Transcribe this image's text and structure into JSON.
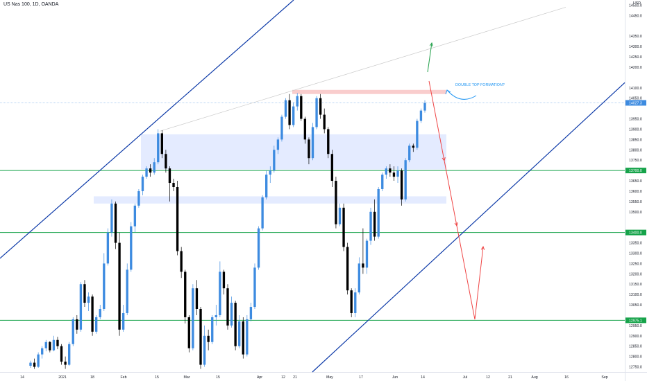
{
  "header": {
    "title": "US Nas 100, 1D, OANDA"
  },
  "colors": {
    "up": "#3d8be0",
    "down": "#000000",
    "channel": "#0d3aa8",
    "support": "#16a34a",
    "zone": "#dde6ff",
    "resistance": "#f8c4c4",
    "arrow_down": "#ef4444",
    "arrow_up": "#22a04a",
    "note": "#2196f3",
    "trend": "#c9c9c9"
  },
  "chart_data": {
    "type": "candlestick",
    "symbol": "US Nas 100",
    "interval": "1D",
    "source": "OANDA",
    "currency": "USD",
    "ylim": [
      12725,
      14525
    ],
    "x_ticks": [
      "14",
      "2021",
      "18",
      "Feb",
      "15",
      "Mar",
      "15",
      "Apr",
      "12",
      "21",
      "May",
      "17",
      "Jun",
      "14",
      "Jul",
      "12",
      "21",
      "Aug",
      "16",
      "Sep"
    ],
    "y_ticks": [
      "14500.0",
      "14450.0",
      "14350.0",
      "14300.0",
      "14250.0",
      "14200.0",
      "14100.0",
      "14050.0",
      "13950.0",
      "13900.0",
      "13850.0",
      "13800.0",
      "13750.0",
      "13650.0",
      "13600.0",
      "13550.0",
      "13500.0",
      "13350.0",
      "13300.0",
      "13250.0",
      "13200.0",
      "13150.0",
      "13100.0",
      "13050.0",
      "12950.0",
      "12900.0",
      "12850.0",
      "12800.0",
      "12750.0"
    ],
    "price_badges": [
      {
        "label": "14027.3",
        "value": 14027.3,
        "color": "#3d8be0"
      },
      {
        "label": "13700.0",
        "value": 13700.0,
        "color": "#16a34a"
      },
      {
        "label": "13400.0",
        "value": 13400.0,
        "color": "#16a34a"
      },
      {
        "label": "12975.1",
        "value": 12975.1,
        "color": "#16a34a"
      }
    ],
    "horizontal_levels": [
      13700.0,
      13400.0,
      12975.1
    ],
    "annotation": "DOUBLE TOP FORMATION?",
    "candles": [
      [
        12755,
        12780,
        12745,
        12770
      ],
      [
        12770,
        12790,
        12740,
        12750
      ],
      [
        12750,
        12820,
        12745,
        12810
      ],
      [
        12810,
        12850,
        12790,
        12840
      ],
      [
        12840,
        12880,
        12825,
        12870
      ],
      [
        12870,
        12875,
        12820,
        12830
      ],
      [
        12830,
        12900,
        12825,
        12880
      ],
      [
        12880,
        12895,
        12835,
        12850
      ],
      [
        12850,
        12860,
        12760,
        12775
      ],
      [
        12775,
        12800,
        12740,
        12760
      ],
      [
        12760,
        12870,
        12755,
        12860
      ],
      [
        12860,
        12990,
        12850,
        12980
      ],
      [
        12980,
        13000,
        12910,
        12930
      ],
      [
        12930,
        13160,
        12920,
        13150
      ],
      [
        13150,
        13170,
        13040,
        13060
      ],
      [
        13060,
        13110,
        13020,
        13090
      ],
      [
        13090,
        13100,
        12900,
        12920
      ],
      [
        12920,
        13000,
        12910,
        12990
      ],
      [
        12990,
        13050,
        12980,
        13030
      ],
      [
        13030,
        13300,
        13020,
        13250
      ],
      [
        13250,
        13420,
        13240,
        13400
      ],
      [
        13400,
        13560,
        13380,
        13540
      ],
      [
        13540,
        13550,
        13320,
        13350
      ],
      [
        13350,
        13400,
        12900,
        12930
      ],
      [
        12930,
        13050,
        12920,
        13010
      ],
      [
        13010,
        13250,
        13000,
        13220
      ],
      [
        13220,
        13450,
        13210,
        13430
      ],
      [
        13430,
        13540,
        13400,
        13530
      ],
      [
        13530,
        13610,
        13520,
        13600
      ],
      [
        13600,
        13680,
        13580,
        13670
      ],
      [
        13670,
        13720,
        13660,
        13710
      ],
      [
        13710,
        13730,
        13670,
        13690
      ],
      [
        13690,
        13760,
        13680,
        13740
      ],
      [
        13740,
        13900,
        13730,
        13880
      ],
      [
        13880,
        13895,
        13760,
        13780
      ],
      [
        13780,
        13800,
        13690,
        13710
      ],
      [
        13710,
        13720,
        13550,
        13640
      ],
      [
        13640,
        13660,
        13600,
        13620
      ],
      [
        13620,
        13650,
        13290,
        13310
      ],
      [
        13310,
        13330,
        13180,
        13210
      ],
      [
        13210,
        13220,
        12960,
        12990
      ],
      [
        12990,
        13000,
        12820,
        12840
      ],
      [
        12840,
        13150,
        12830,
        13130
      ],
      [
        13130,
        13170,
        13000,
        13030
      ],
      [
        13030,
        13040,
        12740,
        12760
      ],
      [
        12760,
        12950,
        12750,
        12900
      ],
      [
        12900,
        12930,
        12830,
        12870
      ],
      [
        12870,
        13000,
        12860,
        12990
      ],
      [
        12990,
        13050,
        12950,
        13000
      ],
      [
        13000,
        13260,
        12990,
        13210
      ],
      [
        13210,
        13220,
        13100,
        13130
      ],
      [
        13130,
        13150,
        12930,
        12950
      ],
      [
        12950,
        13090,
        12940,
        13060
      ],
      [
        13060,
        13070,
        12830,
        12850
      ],
      [
        12850,
        13000,
        12840,
        12970
      ],
      [
        12970,
        12990,
        12790,
        12810
      ],
      [
        12810,
        13000,
        12800,
        12980
      ],
      [
        12980,
        13060,
        12970,
        13040
      ],
      [
        13040,
        13250,
        13030,
        13230
      ],
      [
        13230,
        13430,
        13220,
        13420
      ],
      [
        13420,
        13580,
        13410,
        13570
      ],
      [
        13570,
        13700,
        13560,
        13680
      ],
      [
        13680,
        13720,
        13640,
        13700
      ],
      [
        13700,
        13820,
        13690,
        13800
      ],
      [
        13800,
        13860,
        13780,
        13850
      ],
      [
        13850,
        13970,
        13840,
        13960
      ],
      [
        13960,
        14050,
        13950,
        14040
      ],
      [
        14040,
        14070,
        13900,
        13920
      ],
      [
        13920,
        14030,
        13910,
        14010
      ],
      [
        14010,
        14075,
        13990,
        14060
      ],
      [
        14060,
        14070,
        13940,
        13950
      ],
      [
        13950,
        13960,
        13830,
        13850
      ],
      [
        13850,
        13860,
        13730,
        13760
      ],
      [
        13760,
        13930,
        13750,
        13910
      ],
      [
        13910,
        14060,
        13900,
        14050
      ],
      [
        14050,
        14070,
        13950,
        13970
      ],
      [
        13970,
        14000,
        13880,
        13900
      ],
      [
        13900,
        13910,
        13760,
        13780
      ],
      [
        13780,
        13800,
        13620,
        13650
      ],
      [
        13650,
        13670,
        13420,
        13440
      ],
      [
        13440,
        13540,
        13430,
        13520
      ],
      [
        13520,
        13540,
        13310,
        13330
      ],
      [
        13330,
        13350,
        13100,
        13120
      ],
      [
        13120,
        13130,
        12990,
        13010
      ],
      [
        13010,
        13130,
        12990,
        13110
      ],
      [
        13110,
        13280,
        13100,
        13250
      ],
      [
        13250,
        13420,
        13200,
        13230
      ],
      [
        13230,
        13370,
        13200,
        13360
      ],
      [
        13360,
        13520,
        13340,
        13500
      ],
      [
        13500,
        13560,
        13360,
        13380
      ],
      [
        13380,
        13620,
        13370,
        13610
      ],
      [
        13610,
        13690,
        13600,
        13680
      ],
      [
        13680,
        13720,
        13660,
        13710
      ],
      [
        13710,
        13730,
        13670,
        13690
      ],
      [
        13690,
        13720,
        13650,
        13670
      ],
      [
        13670,
        13720,
        13640,
        13700
      ],
      [
        13700,
        13710,
        13530,
        13560
      ],
      [
        13560,
        13760,
        13550,
        13750
      ],
      [
        13750,
        13830,
        13740,
        13820
      ],
      [
        13820,
        13830,
        13790,
        13810
      ],
      [
        13810,
        13950,
        13800,
        13940
      ],
      [
        13940,
        14000,
        13930,
        13990
      ],
      [
        13990,
        14040,
        13980,
        14027
      ]
    ]
  }
}
